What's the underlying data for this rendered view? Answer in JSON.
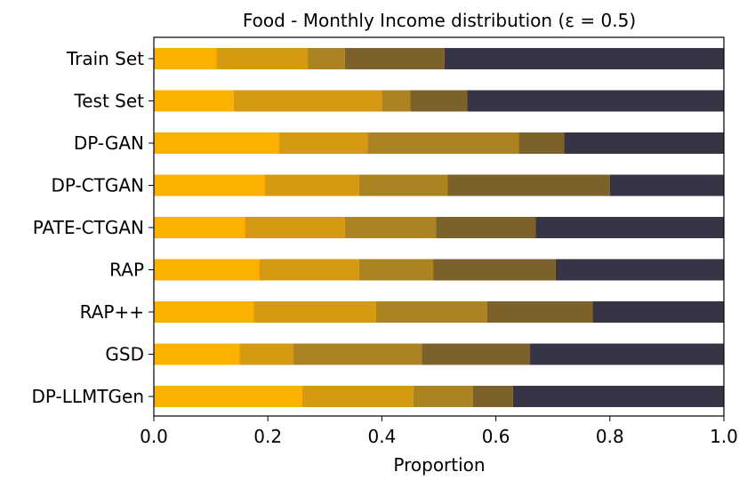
{
  "chart_data": {
    "type": "bar",
    "orientation": "horizontal",
    "stacked": true,
    "title": "Food - Monthly Income distribution (ε = 0.5)",
    "xlabel": "Proportion",
    "ylabel": "",
    "xlim": [
      0.0,
      1.0
    ],
    "xticks": [
      "0.0",
      "0.2",
      "0.4",
      "0.6",
      "0.8",
      "1.0"
    ],
    "grid": false,
    "legend": "none",
    "categories": [
      "Train Set",
      "Test Set",
      "DP-GAN",
      "DP-CTGAN",
      "PATE-CTGAN",
      "RAP",
      "RAP++",
      "GSD",
      "DP-LLMTGen"
    ],
    "segment_colors": [
      "#FCB000",
      "#D69A12",
      "#AB8421",
      "#7C612A",
      "#373445"
    ],
    "segments": [
      [
        0.11,
        0.16,
        0.065,
        0.175,
        0.49
      ],
      [
        0.14,
        0.26,
        0.05,
        0.1,
        0.45
      ],
      [
        0.22,
        0.155,
        0.265,
        0.08,
        0.28
      ],
      [
        0.195,
        0.165,
        0.155,
        0.285,
        0.2
      ],
      [
        0.16,
        0.175,
        0.16,
        0.175,
        0.33
      ],
      [
        0.185,
        0.175,
        0.13,
        0.215,
        0.295
      ],
      [
        0.175,
        0.215,
        0.195,
        0.185,
        0.23
      ],
      [
        0.15,
        0.095,
        0.225,
        0.19,
        0.34
      ],
      [
        0.26,
        0.195,
        0.105,
        0.07,
        0.37
      ]
    ]
  }
}
